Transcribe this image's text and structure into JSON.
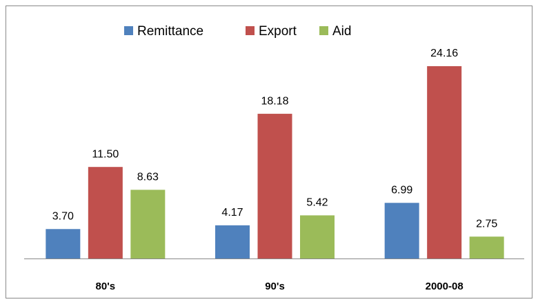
{
  "chart_data": {
    "type": "bar",
    "categories": [
      "80's",
      "90's",
      "2000-08"
    ],
    "series": [
      {
        "name": "Remittance",
        "color": "#4f81bd",
        "values": [
          3.7,
          4.17,
          6.99
        ],
        "value_labels": [
          "3.70",
          "4.17",
          "6.99"
        ]
      },
      {
        "name": "Export",
        "color": "#c0504d",
        "values": [
          11.5,
          18.18,
          24.16
        ],
        "value_labels": [
          "11.50",
          "18.18",
          "24.16"
        ]
      },
      {
        "name": "Aid",
        "color": "#9bbb59",
        "values": [
          8.63,
          5.42,
          2.75
        ],
        "value_labels": [
          "8.63",
          "5.42",
          "2.75"
        ]
      }
    ],
    "legend": "top"
  }
}
